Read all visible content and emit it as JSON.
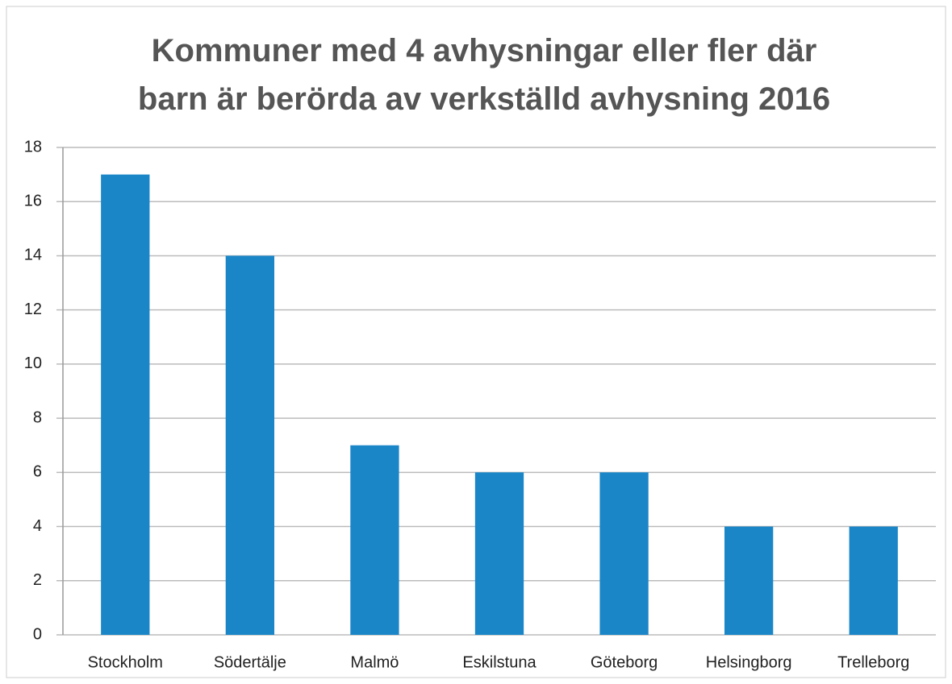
{
  "chart_data": {
    "type": "bar",
    "title": "Kommuner med 4 avhysningar eller fler där barn är berörda av verkställd avhysning 2016",
    "categories": [
      "Stockholm",
      "Södertälje",
      "Malmö",
      "Eskilstuna",
      "Göteborg",
      "Helsingborg",
      "Trelleborg"
    ],
    "values": [
      17,
      14,
      7,
      6,
      6,
      4,
      4
    ],
    "color": "#1a86c8",
    "ylim": [
      0,
      18
    ],
    "yticks": [
      0,
      2,
      4,
      6,
      8,
      10,
      12,
      14,
      16,
      18
    ],
    "grid": true
  }
}
